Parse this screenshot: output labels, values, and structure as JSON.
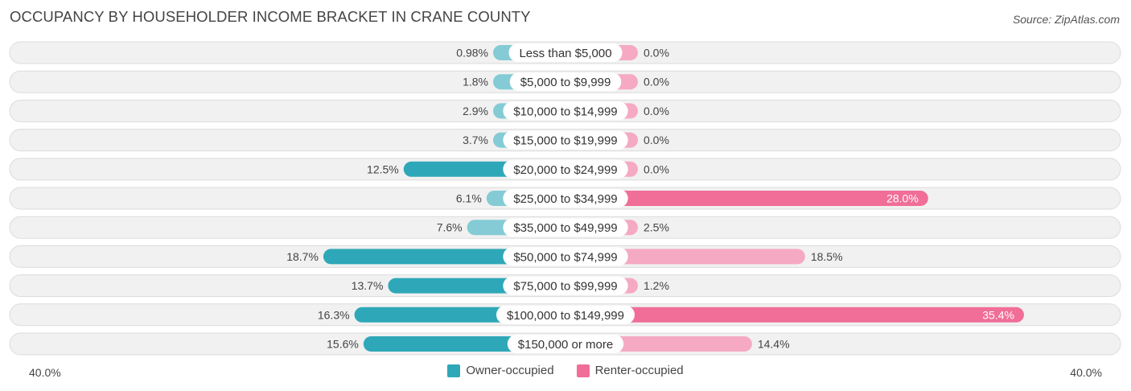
{
  "header": {
    "title": "OCCUPANCY BY HOUSEHOLDER INCOME BRACKET IN CRANE COUNTY",
    "source": "Source: ZipAtlas.com"
  },
  "colors": {
    "owner_light": "#84cbd5",
    "owner_dark": "#2ea8b8",
    "renter_light": "#f5a9c3",
    "renter_dark": "#f06e97",
    "row_bg": "#f1f1f1",
    "row_border": "#dcdcdc"
  },
  "axis": {
    "left_label": "40.0%",
    "right_label": "40.0%"
  },
  "legend": {
    "owner_label": "Owner-occupied",
    "renter_label": "Renter-occupied"
  },
  "chart_data": {
    "type": "bar",
    "orientation": "horizontal-diverging",
    "title": "OCCUPANCY BY HOUSEHOLDER INCOME BRACKET IN CRANE COUNTY",
    "categories": [
      "Less than $5,000",
      "$5,000 to $9,999",
      "$10,000 to $14,999",
      "$15,000 to $19,999",
      "$20,000 to $24,999",
      "$25,000 to $34,999",
      "$35,000 to $49,999",
      "$50,000 to $74,999",
      "$75,000 to $99,999",
      "$100,000 to $149,999",
      "$150,000 or more"
    ],
    "series": [
      {
        "name": "Owner-occupied",
        "values": [
          0.98,
          1.8,
          2.9,
          3.7,
          12.5,
          6.1,
          7.6,
          18.7,
          13.7,
          16.3,
          15.6
        ],
        "labels": [
          "0.98%",
          "1.8%",
          "2.9%",
          "3.7%",
          "12.5%",
          "6.1%",
          "7.6%",
          "18.7%",
          "13.7%",
          "16.3%",
          "15.6%"
        ]
      },
      {
        "name": "Renter-occupied",
        "values": [
          0.0,
          0.0,
          0.0,
          0.0,
          0.0,
          28.0,
          2.5,
          18.5,
          1.2,
          35.4,
          14.4
        ],
        "labels": [
          "0.0%",
          "0.0%",
          "0.0%",
          "0.0%",
          "0.0%",
          "28.0%",
          "2.5%",
          "18.5%",
          "1.2%",
          "35.4%",
          "14.4%"
        ]
      }
    ],
    "xlim": [
      -40,
      40
    ],
    "legend_position": "bottom-center"
  }
}
